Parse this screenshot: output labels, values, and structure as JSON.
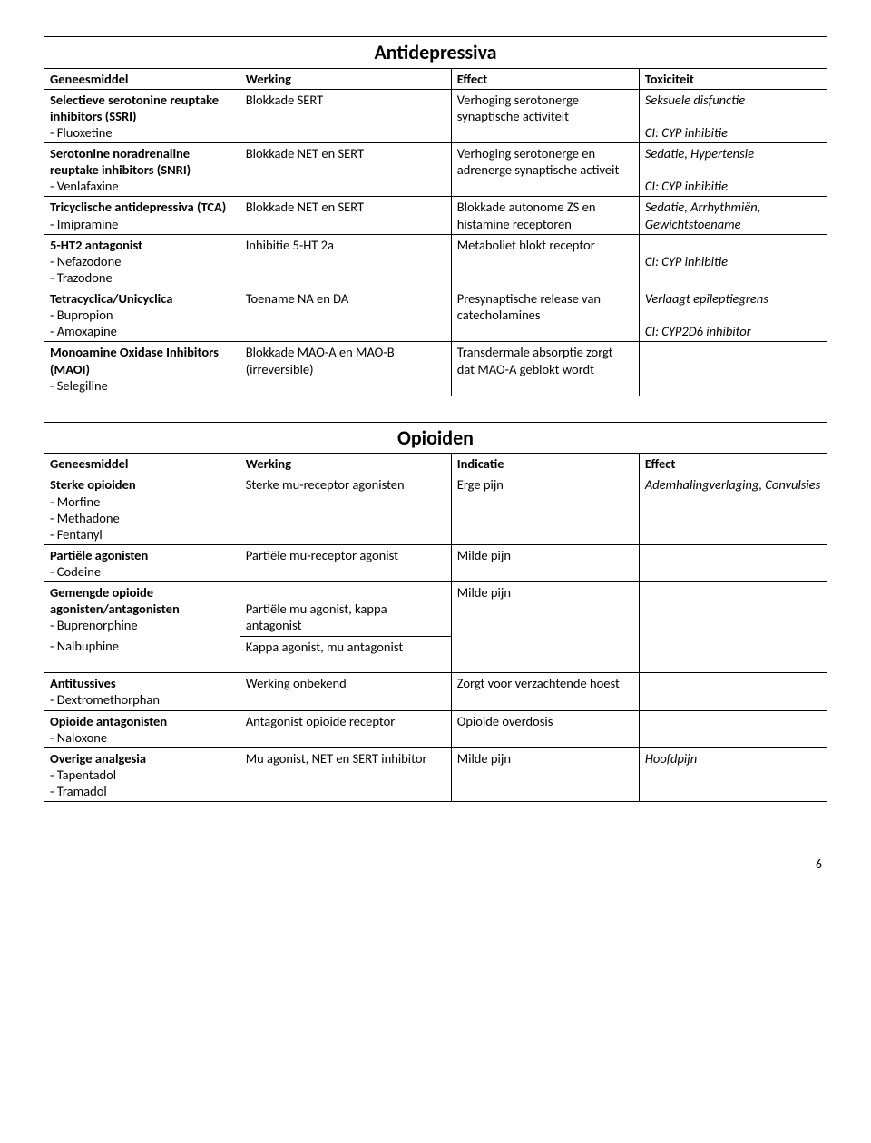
{
  "pageNumber": "6",
  "table1": {
    "title": "Antidepressiva",
    "headers": [
      "Geneesmiddel",
      "Werking",
      "Effect",
      "Toxiciteit"
    ],
    "rows": [
      {
        "c1_bold": "Selectieve serotonine reuptake inhibitors (SSRI)",
        "c1_rest": "- Fluoxetine",
        "c2": "Blokkade SERT",
        "c3": "Verhoging serotonerge synaptische activiteit",
        "c4a": "Seksuele disfunctie",
        "c4b": "CI: CYP inhibitie"
      },
      {
        "c1_bold": "Serotonine noradrenaline reuptake inhibitors (SNRI)",
        "c1_rest": "- Venlafaxine",
        "c2": "Blokkade NET en SERT",
        "c3": "Verhoging serotonerge en adrenerge synaptische activeit",
        "c4a": "Sedatie, Hypertensie",
        "c4b": "CI: CYP inhibitie"
      },
      {
        "c1_bold": "Tricyclische antidepressiva (TCA)",
        "c1_rest": "- Imipramine",
        "c2": "Blokkade NET en SERT",
        "c3": "Blokkade autonome ZS en histamine receptoren",
        "c4a": "Sedatie, Arrhythmiën, Gewichtstoename",
        "c4b": ""
      },
      {
        "c1_bold": "5-HT2 antagonist",
        "c1_rest": "- Nefazodone\n- Trazodone",
        "c2": "Inhibitie 5-HT 2a",
        "c3": "Metaboliet blokt receptor",
        "c4a": "",
        "c4b": "CI: CYP inhibitie"
      },
      {
        "c1_bold": "Tetracyclica/Unicyclica",
        "c1_rest": "- Bupropion\n- Amoxapine",
        "c2": "Toename NA en DA",
        "c3": "Presynaptische release van catecholamines",
        "c4a": "Verlaagt epileptiegrens",
        "c4b": "CI: CYP2D6 inhibitor"
      },
      {
        "c1_bold": "Monoamine Oxidase Inhibitors (MAOI)",
        "c1_rest": "- Selegiline",
        "c2": "Blokkade MAO-A en MAO-B (irreversible)",
        "c3": "Transdermale absorptie zorgt dat MAO-A geblokt wordt",
        "c4a": "",
        "c4b": ""
      }
    ]
  },
  "table2": {
    "title": "Opioiden",
    "headers": [
      "Geneesmiddel",
      "Werking",
      "Indicatie",
      "Effect"
    ],
    "r1": {
      "c1_bold": "Sterke opioiden",
      "c1_rest": "- Morfine\n- Methadone\n- Fentanyl",
      "c2": "Sterke mu-receptor agonisten",
      "c3": "Erge pijn",
      "c4": "Ademhalingverlaging, Convulsies"
    },
    "r2": {
      "c1_bold": "Partiële agonisten",
      "c1_rest": "- Codeine",
      "c2": "Partiële mu-receptor agonist",
      "c3": "Milde pijn",
      "c4": ""
    },
    "r3a": {
      "c1_bold": "Gemengde opioide agonisten/antagonisten",
      "c1_rest1": "- Buprenorphine",
      "c1_rest2": "- Nalbuphine",
      "c2a": "Partiële mu agonist, kappa antagonist",
      "c2b": "Kappa agonist, mu antagonist",
      "c3": "Milde pijn",
      "c4": ""
    },
    "r4": {
      "c1_bold": "Antitussives",
      "c1_rest": "- Dextromethorphan",
      "c2": "Werking onbekend",
      "c3": "Zorgt voor verzachtende hoest",
      "c4": ""
    },
    "r5": {
      "c1_bold": "Opioide antagonisten",
      "c1_rest": "- Naloxone",
      "c2": "Antagonist opioide receptor",
      "c3": "Opioide overdosis",
      "c4": ""
    },
    "r6": {
      "c1_bold": "Overige analgesia",
      "c1_rest": "- Tapentadol\n- Tramadol",
      "c2": "Mu agonist, NET en SERT inhibitor",
      "c3": "Milde pijn",
      "c4": "Hoofdpijn"
    }
  }
}
